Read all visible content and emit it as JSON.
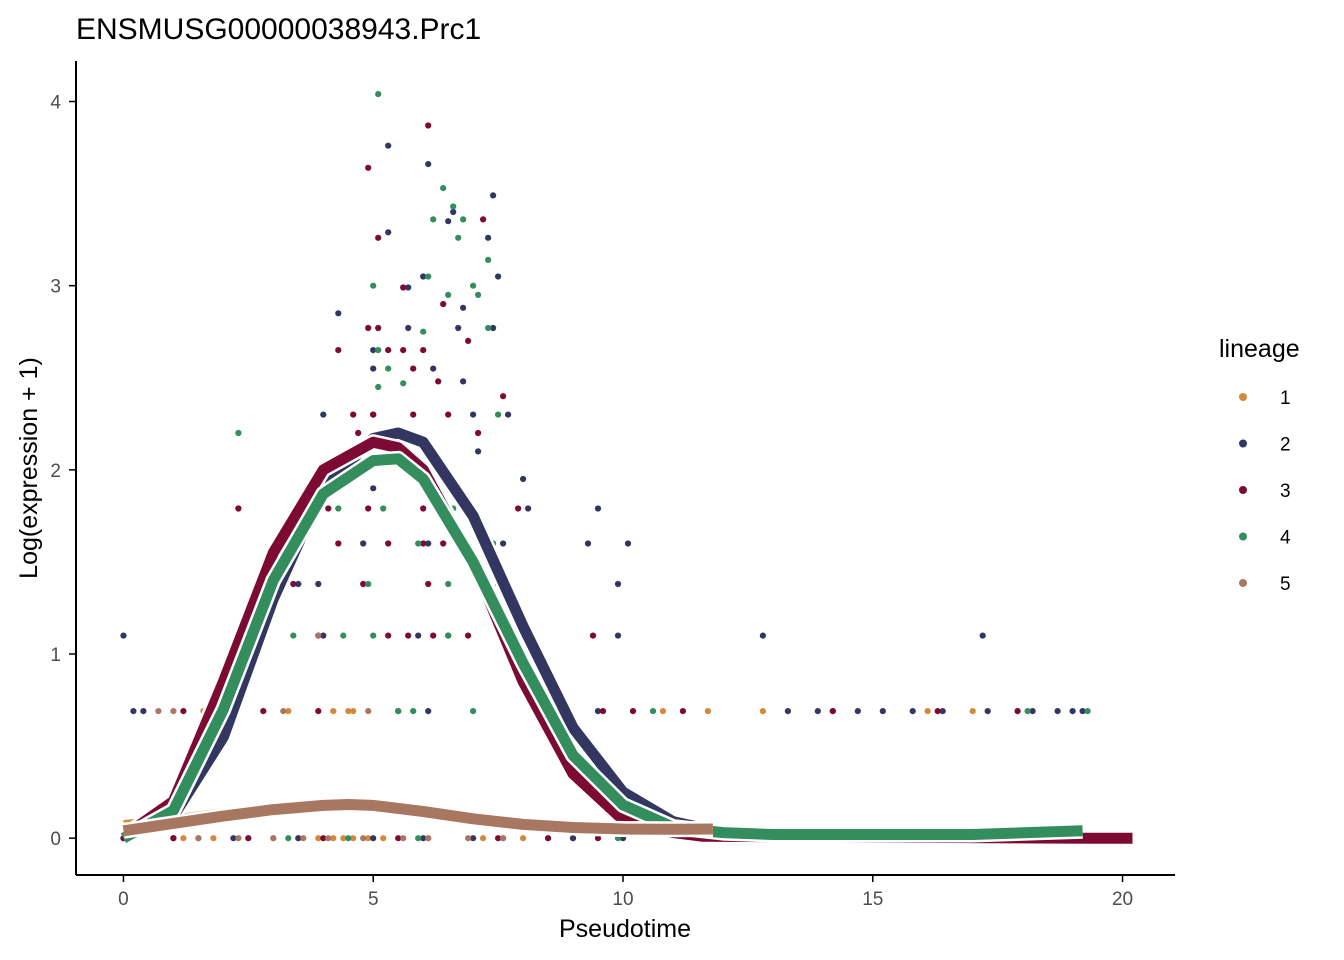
{
  "chart_data": {
    "type": "scatter",
    "title": "ENSMUSG00000038943.Prc1",
    "xlabel": "Pseudotime",
    "ylabel": "Log(expression + 1)",
    "xlim": [
      -0.95,
      21.05
    ],
    "ylim": [
      -0.2,
      4.22
    ],
    "xticks": [
      "0",
      "5",
      "10",
      "15",
      "20"
    ],
    "xtick_values": [
      0,
      5,
      10,
      15,
      20
    ],
    "yticks": [
      "0",
      "1",
      "2",
      "3",
      "4"
    ],
    "ytick_values": [
      0,
      1,
      2,
      3,
      4
    ],
    "grid": false,
    "legend": {
      "title": "lineage",
      "placement": "right"
    },
    "series": [
      {
        "name": "1",
        "color": "#D5873A",
        "points": [
          [
            2.3,
            1.79
          ],
          [
            3.6,
            1.79
          ],
          [
            4.2,
            0.69
          ],
          [
            4.5,
            0.69
          ],
          [
            4.6,
            0.69
          ],
          [
            1.6,
            0.69
          ],
          [
            2.2,
            0.69
          ],
          [
            3.3,
            0.69
          ],
          [
            10.8,
            0.69
          ],
          [
            11.7,
            0.69
          ],
          [
            12.8,
            0.69
          ],
          [
            16.1,
            0.69
          ],
          [
            17.0,
            0.69
          ],
          [
            1.2,
            0
          ],
          [
            1.8,
            0
          ],
          [
            2.5,
            0
          ],
          [
            3.0,
            0
          ],
          [
            3.5,
            0
          ],
          [
            3.9,
            0
          ],
          [
            4.2,
            0
          ],
          [
            4.4,
            0
          ],
          [
            4.6,
            0
          ],
          [
            4.9,
            0
          ],
          [
            5.2,
            0
          ],
          [
            6.1,
            0
          ],
          [
            7.2,
            0
          ],
          [
            8.0,
            0
          ],
          [
            8.5,
            0
          ],
          [
            9.0,
            0
          ]
        ],
        "curve": [
          [
            0,
            0.09
          ],
          [
            1,
            0.12
          ],
          [
            2,
            0.155
          ],
          [
            3,
            0.185
          ],
          [
            3.8,
            0.2
          ]
        ]
      },
      {
        "name": "2",
        "color": "#333660",
        "points": [
          [
            0,
            1.1
          ],
          [
            0.2,
            0.69
          ],
          [
            0.4,
            0.69
          ],
          [
            5.3,
            3.76
          ],
          [
            6.1,
            3.66
          ],
          [
            6.6,
            3.4
          ],
          [
            7.4,
            3.49
          ],
          [
            5.3,
            3.29
          ],
          [
            6.5,
            3.35
          ],
          [
            7.3,
            3.26
          ],
          [
            7.5,
            3.05
          ],
          [
            6.0,
            3.05
          ],
          [
            5.7,
            2.99
          ],
          [
            6.8,
            2.88
          ],
          [
            4.3,
            2.85
          ],
          [
            5.7,
            2.77
          ],
          [
            5.0,
            2.65
          ],
          [
            6.7,
            2.77
          ],
          [
            7.4,
            2.77
          ],
          [
            5.0,
            2.55
          ],
          [
            6.2,
            2.55
          ],
          [
            6.8,
            2.48
          ],
          [
            7.0,
            2.3
          ],
          [
            4.0,
            2.3
          ],
          [
            5.0,
            2.3
          ],
          [
            5.5,
            2.2
          ],
          [
            7.1,
            2.1
          ],
          [
            7.7,
            2.3
          ],
          [
            5.8,
            2.0
          ],
          [
            5.0,
            1.9
          ],
          [
            8.0,
            1.95
          ],
          [
            8.1,
            1.79
          ],
          [
            4.8,
            1.6
          ],
          [
            6.1,
            1.6
          ],
          [
            7.6,
            1.6
          ],
          [
            9.3,
            1.6
          ],
          [
            9.5,
            1.79
          ],
          [
            10.1,
            1.6
          ],
          [
            9.9,
            1.38
          ],
          [
            2.8,
            1.38
          ],
          [
            3.5,
            1.38
          ],
          [
            3.9,
            1.38
          ],
          [
            4.0,
            1.1
          ],
          [
            5.9,
            1.1
          ],
          [
            6.5,
            1.1
          ],
          [
            9.9,
            1.1
          ],
          [
            12.8,
            1.1
          ],
          [
            17.2,
            1.1
          ],
          [
            6.1,
            0.69
          ],
          [
            9.5,
            0.69
          ],
          [
            13.3,
            0.69
          ],
          [
            13.9,
            0.69
          ],
          [
            14.2,
            0.69
          ],
          [
            14.7,
            0.69
          ],
          [
            15.2,
            0.69
          ],
          [
            15.8,
            0.69
          ],
          [
            16.4,
            0.69
          ],
          [
            17.3,
            0.69
          ],
          [
            18.2,
            0.69
          ],
          [
            18.7,
            0.69
          ],
          [
            19.0,
            0.69
          ],
          [
            19.2,
            0.69
          ],
          [
            20.1,
            0
          ],
          [
            0,
            0
          ],
          [
            1.0,
            0
          ],
          [
            2.2,
            0
          ],
          [
            3.5,
            0
          ],
          [
            5.0,
            0
          ],
          [
            6.0,
            0
          ],
          [
            7.0,
            0
          ],
          [
            9.0,
            0
          ],
          [
            10.0,
            0
          ]
        ],
        "curve": [
          [
            0,
            0.02
          ],
          [
            1,
            0.12
          ],
          [
            2,
            0.55
          ],
          [
            3,
            1.3
          ],
          [
            4,
            1.9
          ],
          [
            5,
            2.17
          ],
          [
            5.5,
            2.2
          ],
          [
            6,
            2.15
          ],
          [
            7,
            1.75
          ],
          [
            8,
            1.15
          ],
          [
            9,
            0.6
          ],
          [
            10,
            0.25
          ],
          [
            11,
            0.09
          ],
          [
            12,
            0.03
          ],
          [
            12.6,
            0.02
          ]
        ]
      },
      {
        "name": "3",
        "color": "#7D0A33",
        "points": [
          [
            4.9,
            3.64
          ],
          [
            6.1,
            3.87
          ],
          [
            5.1,
            3.26
          ],
          [
            7.2,
            3.36
          ],
          [
            5.6,
            2.99
          ],
          [
            6.4,
            2.9
          ],
          [
            4.9,
            2.77
          ],
          [
            5.1,
            2.77
          ],
          [
            4.3,
            2.65
          ],
          [
            5.3,
            2.65
          ],
          [
            6.0,
            2.65
          ],
          [
            6.9,
            2.7
          ],
          [
            5.6,
            2.65
          ],
          [
            5.8,
            2.55
          ],
          [
            6.3,
            2.48
          ],
          [
            7.6,
            2.4
          ],
          [
            4.6,
            2.3
          ],
          [
            5.0,
            2.3
          ],
          [
            5.8,
            2.3
          ],
          [
            6.5,
            2.3
          ],
          [
            4.7,
            2.2
          ],
          [
            5.2,
            2.2
          ],
          [
            7.1,
            2.2
          ],
          [
            2.3,
            1.79
          ],
          [
            4.1,
            1.79
          ],
          [
            4.9,
            1.79
          ],
          [
            6.0,
            1.79
          ],
          [
            7.0,
            1.79
          ],
          [
            7.9,
            1.79
          ],
          [
            4.3,
            1.6
          ],
          [
            5.3,
            1.6
          ],
          [
            6.0,
            1.6
          ],
          [
            6.4,
            1.6
          ],
          [
            3.4,
            1.38
          ],
          [
            4.8,
            1.38
          ],
          [
            6.1,
            1.38
          ],
          [
            7.2,
            1.38
          ],
          [
            7.5,
            1.38
          ],
          [
            3.9,
            1.1
          ],
          [
            5.3,
            1.1
          ],
          [
            5.7,
            1.1
          ],
          [
            6.2,
            1.1
          ],
          [
            6.9,
            1.1
          ],
          [
            9.4,
            1.1
          ],
          [
            1.2,
            0.69
          ],
          [
            2.8,
            0.69
          ],
          [
            3.9,
            0.69
          ],
          [
            5.5,
            0.69
          ],
          [
            9.6,
            0.69
          ],
          [
            10.2,
            0.69
          ],
          [
            11.2,
            0.69
          ],
          [
            14.2,
            0.69
          ],
          [
            16.3,
            0.69
          ],
          [
            17.9,
            0.69
          ],
          [
            19.3,
            0
          ],
          [
            19.9,
            0
          ],
          [
            0,
            0
          ],
          [
            1.0,
            0
          ],
          [
            2.5,
            0
          ],
          [
            4.0,
            0
          ],
          [
            5.5,
            0
          ],
          [
            7.5,
            0
          ],
          [
            8.5,
            0
          ],
          [
            9.5,
            0
          ]
        ],
        "curve": [
          [
            0,
            0.01
          ],
          [
            1,
            0.2
          ],
          [
            2,
            0.85
          ],
          [
            3,
            1.55
          ],
          [
            4,
            2.0
          ],
          [
            5,
            2.15
          ],
          [
            5.5,
            2.12
          ],
          [
            6,
            2.0
          ],
          [
            7,
            1.5
          ],
          [
            8,
            0.85
          ],
          [
            9,
            0.35
          ],
          [
            10,
            0.1
          ],
          [
            11,
            0.03
          ],
          [
            11.6,
            0.01
          ],
          [
            19.3,
            0.0
          ],
          [
            20.2,
            0.0
          ]
        ]
      },
      {
        "name": "4",
        "color": "#348D5D",
        "points": [
          [
            5.1,
            4.04
          ],
          [
            6.4,
            3.53
          ],
          [
            6.2,
            3.36
          ],
          [
            6.6,
            3.43
          ],
          [
            6.7,
            3.26
          ],
          [
            6.8,
            3.36
          ],
          [
            7.3,
            3.14
          ],
          [
            5.0,
            3.0
          ],
          [
            6.1,
            3.05
          ],
          [
            7.0,
            3.0
          ],
          [
            6.5,
            2.95
          ],
          [
            7.1,
            2.95
          ],
          [
            5.1,
            2.65
          ],
          [
            5.3,
            2.55
          ],
          [
            5.1,
            2.45
          ],
          [
            6.0,
            2.75
          ],
          [
            7.3,
            2.77
          ],
          [
            5.6,
            2.47
          ],
          [
            7.5,
            2.3
          ],
          [
            4.4,
            2.08
          ],
          [
            4.3,
            1.79
          ],
          [
            5.2,
            1.79
          ],
          [
            6.6,
            1.79
          ],
          [
            5.9,
            1.6
          ],
          [
            7.4,
            1.6
          ],
          [
            4.9,
            1.38
          ],
          [
            6.5,
            1.38
          ],
          [
            3.4,
            1.1
          ],
          [
            4.4,
            1.1
          ],
          [
            5.0,
            1.1
          ],
          [
            6.5,
            1.1
          ],
          [
            2.3,
            2.2
          ],
          [
            5.5,
            0.69
          ],
          [
            5.8,
            0.69
          ],
          [
            7.0,
            0.69
          ],
          [
            10.6,
            0.69
          ],
          [
            18.1,
            0.69
          ],
          [
            19.3,
            0.69
          ],
          [
            1.5,
            0
          ],
          [
            3.3,
            0
          ],
          [
            4.5,
            0
          ],
          [
            5.9,
            0
          ],
          [
            7.6,
            0
          ],
          [
            9.9,
            0
          ]
        ],
        "curve": [
          [
            0,
            0.0
          ],
          [
            1,
            0.15
          ],
          [
            2,
            0.7
          ],
          [
            3,
            1.4
          ],
          [
            4,
            1.87
          ],
          [
            5,
            2.05
          ],
          [
            5.5,
            2.06
          ],
          [
            6,
            1.95
          ],
          [
            7,
            1.5
          ],
          [
            8,
            0.95
          ],
          [
            9,
            0.45
          ],
          [
            10,
            0.18
          ],
          [
            11,
            0.06
          ],
          [
            12,
            0.03
          ],
          [
            13,
            0.02
          ],
          [
            15,
            0.02
          ],
          [
            17,
            0.02
          ],
          [
            19.2,
            0.04
          ]
        ]
      },
      {
        "name": "5",
        "color": "#A87761",
        "points": [
          [
            0.7,
            0.69
          ],
          [
            1.0,
            0.69
          ],
          [
            2.5,
            1.1
          ],
          [
            3.2,
            0.69
          ],
          [
            3.9,
            1.1
          ],
          [
            4.9,
            0.69
          ],
          [
            1.5,
            0
          ],
          [
            2.3,
            0
          ],
          [
            3.0,
            0
          ],
          [
            3.6,
            0
          ],
          [
            4.1,
            0
          ],
          [
            4.8,
            0
          ],
          [
            5.6,
            0
          ],
          [
            6.1,
            0
          ],
          [
            6.9,
            0
          ],
          [
            7.6,
            0
          ]
        ],
        "curve": [
          [
            0,
            0.04
          ],
          [
            1,
            0.08
          ],
          [
            2,
            0.12
          ],
          [
            3,
            0.155
          ],
          [
            4,
            0.178
          ],
          [
            4.5,
            0.183
          ],
          [
            5,
            0.178
          ],
          [
            6,
            0.145
          ],
          [
            7,
            0.105
          ],
          [
            8,
            0.075
          ],
          [
            9,
            0.058
          ],
          [
            10,
            0.05
          ],
          [
            11,
            0.048
          ],
          [
            11.8,
            0.05
          ]
        ]
      }
    ]
  }
}
